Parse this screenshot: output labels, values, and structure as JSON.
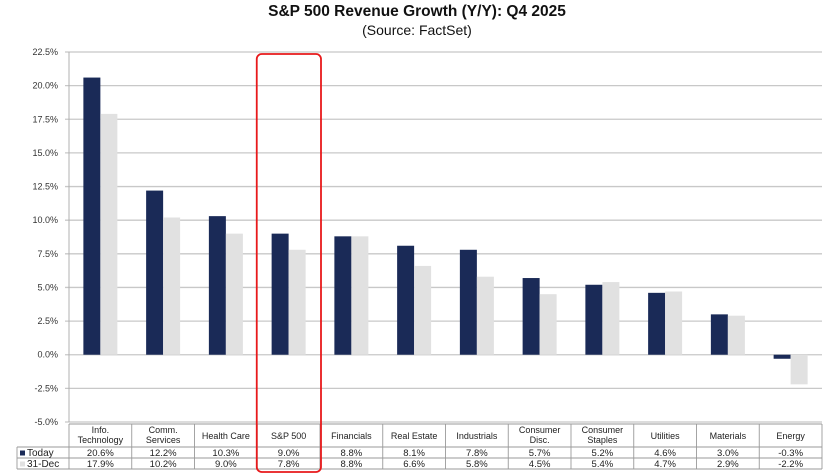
{
  "chart_data": {
    "type": "bar",
    "title": "S&P 500 Revenue Growth (Y/Y): Q4 2025",
    "subtitle": "(Source: FactSet)",
    "xlabel": "",
    "ylabel": "",
    "ylim": [
      -5.0,
      22.5
    ],
    "yticks": [
      "22.5%",
      "20.0%",
      "17.5%",
      "15.0%",
      "12.5%",
      "10.0%",
      "7.5%",
      "5.0%",
      "2.5%",
      "0.0%",
      "-2.5%",
      "-5.0%"
    ],
    "ytick_values": [
      22.5,
      20.0,
      17.5,
      15.0,
      12.5,
      10.0,
      7.5,
      5.0,
      2.5,
      0.0,
      -2.5,
      -5.0
    ],
    "grid": true,
    "legend_placement": "bottom-left (data table)",
    "categories": [
      [
        "Info.",
        "Technology"
      ],
      [
        "Comm.",
        "Services"
      ],
      [
        "Health Care"
      ],
      [
        "S&P 500"
      ],
      [
        "Financials"
      ],
      [
        "Real Estate"
      ],
      [
        "Industrials"
      ],
      [
        "Consumer",
        "Disc."
      ],
      [
        "Consumer",
        "Staples"
      ],
      [
        "Utilities"
      ],
      [
        "Materials"
      ],
      [
        "Energy"
      ]
    ],
    "series": [
      {
        "name": "Today",
        "color": "#1a2a57",
        "values": [
          20.6,
          12.2,
          10.3,
          9.0,
          8.8,
          8.1,
          7.8,
          5.7,
          5.2,
          4.6,
          3.0,
          -0.3
        ],
        "labels": [
          "20.6%",
          "12.2%",
          "10.3%",
          "9.0%",
          "8.8%",
          "8.1%",
          "7.8%",
          "5.7%",
          "5.2%",
          "4.6%",
          "3.0%",
          "-0.3%"
        ]
      },
      {
        "name": "31-Dec",
        "color": "#e1e1e1",
        "values": [
          17.9,
          10.2,
          9.0,
          7.8,
          8.8,
          6.6,
          5.8,
          4.5,
          5.4,
          4.7,
          2.9,
          -2.2
        ],
        "labels": [
          "17.9%",
          "10.2%",
          "9.0%",
          "7.8%",
          "8.8%",
          "6.6%",
          "5.8%",
          "4.5%",
          "5.4%",
          "4.7%",
          "2.9%",
          "-2.2%"
        ]
      }
    ],
    "highlight": {
      "category": "S&P 500",
      "color": "#e8191b"
    }
  }
}
